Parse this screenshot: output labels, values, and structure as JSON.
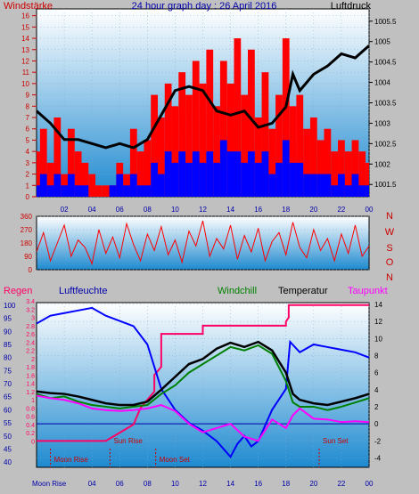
{
  "colors": {
    "frame": "#c0c0c0",
    "plot_top": "#ffffff",
    "plot_bottom": "#1e8ad0",
    "wind": "#ff0000",
    "gust": "#0000ff",
    "pressure": "#000000",
    "direction": "#ff0000",
    "humidity": "#0000ff",
    "temperature": "#000000",
    "windchill": "#008000",
    "dewpoint": "#ff00ff",
    "rain": "#ff0066",
    "title_blue": "#0000aa",
    "label_red": "#cc0000"
  },
  "chart_data": [
    {
      "type": "area",
      "id": "wind-pressure",
      "title": "24 hour graph day : 26 April 2016",
      "left_label": "Windstärke",
      "right_label": "Luftdruck",
      "x_ticks": [
        "02",
        "04",
        "06",
        "08",
        "10",
        "12",
        "14",
        "16",
        "18",
        "20",
        "22",
        "00"
      ],
      "x_range_hours": [
        0,
        24
      ],
      "left_axis": {
        "ticks": [
          "0",
          "1",
          "2",
          "3",
          "4",
          "5",
          "6",
          "7",
          "8",
          "9",
          "10",
          "11",
          "12",
          "13",
          "14",
          "15",
          "16"
        ],
        "ylim": [
          0,
          16.6
        ]
      },
      "right_axis": {
        "ticks": [
          "1001.5",
          "1002",
          "1002.5",
          "1003",
          "1003.5",
          "1004",
          "1004.5",
          "1005",
          "1005.5"
        ],
        "ylim": [
          1001.2,
          1005.8
        ]
      },
      "series": [
        {
          "key": "wind",
          "x": [
            0,
            0.5,
            1,
            1.5,
            2,
            2.5,
            3,
            3.5,
            4,
            4.5,
            5,
            5.5,
            6,
            6.5,
            7,
            7.5,
            8,
            8.5,
            9,
            9.5,
            10,
            10.5,
            11,
            11.5,
            12,
            12.5,
            13,
            13.5,
            14,
            14.5,
            15,
            15.5,
            16,
            16.5,
            17,
            17.5,
            18,
            18.5,
            19,
            19.5,
            20,
            20.5,
            21,
            21.5,
            22,
            22.5,
            23,
            23.5,
            24
          ],
          "values": [
            4,
            6,
            3,
            7,
            2,
            6,
            4,
            3,
            2,
            1,
            1,
            1,
            3,
            2,
            6,
            4,
            5,
            9,
            7,
            10,
            8,
            11,
            9,
            12,
            10,
            13,
            8,
            12,
            10,
            14,
            9,
            13,
            7,
            11,
            6,
            9,
            14,
            8,
            9,
            6,
            7,
            5,
            6,
            4,
            5,
            4,
            5,
            4,
            3
          ]
        },
        {
          "key": "gust",
          "x": [
            0,
            0.5,
            1,
            1.5,
            2,
            2.5,
            3,
            3.5,
            4,
            4.5,
            5,
            5.5,
            6,
            6.5,
            7,
            7.5,
            8,
            8.5,
            9,
            9.5,
            10,
            10.5,
            11,
            11.5,
            12,
            12.5,
            13,
            13.5,
            14,
            14.5,
            15,
            15.5,
            16,
            16.5,
            17,
            17.5,
            18,
            18.5,
            19,
            19.5,
            20,
            20.5,
            21,
            21.5,
            22,
            22.5,
            23,
            23.5,
            24
          ],
          "values": [
            1,
            2,
            1,
            2,
            1,
            2,
            1,
            1,
            0,
            0,
            0,
            1,
            2,
            1,
            2,
            1,
            1,
            3,
            2,
            4,
            3,
            4,
            3,
            4,
            3,
            4,
            3,
            5,
            4,
            4,
            3,
            4,
            3,
            4,
            2,
            3,
            5,
            3,
            3,
            2,
            2,
            2,
            2,
            1,
            2,
            1,
            2,
            1,
            1
          ]
        },
        {
          "key": "pressure",
          "x": [
            0,
            1,
            2,
            3,
            4,
            5,
            6,
            7,
            8,
            9,
            10,
            11,
            12,
            13,
            14,
            15,
            16,
            17,
            18,
            18.5,
            19,
            20,
            21,
            22,
            23,
            24
          ],
          "values": [
            1003.3,
            1003.0,
            1002.6,
            1002.6,
            1002.5,
            1002.4,
            1002.5,
            1002.4,
            1002.6,
            1003.2,
            1003.8,
            1003.9,
            1003.8,
            1003.3,
            1003.2,
            1003.3,
            1002.9,
            1003.0,
            1003.4,
            1004.2,
            1003.8,
            1004.2,
            1004.4,
            1004.7,
            1004.6,
            1004.9
          ]
        }
      ]
    },
    {
      "type": "scatter",
      "id": "wind-direction",
      "y_ticks": [
        "0",
        "90",
        "180",
        "270",
        "360"
      ],
      "ylim": [
        0,
        360
      ],
      "compass_labels": [
        "N",
        "W",
        "S",
        "O",
        "N"
      ],
      "x_range_hours": [
        0,
        24
      ],
      "series": [
        {
          "key": "direction",
          "x": [
            0,
            0.5,
            1,
            1.5,
            2,
            2.5,
            3,
            3.5,
            4,
            4.5,
            5,
            5.5,
            6,
            6.5,
            7,
            7.5,
            8,
            8.5,
            9,
            9.5,
            10,
            10.5,
            11,
            11.5,
            12,
            12.5,
            13,
            13.5,
            14,
            14.5,
            15,
            15.5,
            16,
            16.5,
            17,
            17.5,
            18,
            18.5,
            19,
            19.5,
            20,
            20.5,
            21,
            21.5,
            22,
            22.5,
            23,
            23.5,
            24
          ],
          "values": [
            120,
            250,
            60,
            180,
            300,
            90,
            200,
            150,
            40,
            270,
            110,
            220,
            80,
            310,
            170,
            60,
            240,
            130,
            290,
            100,
            200,
            50,
            260,
            160,
            330,
            90,
            210,
            140,
            300,
            70,
            230,
            120,
            280,
            60,
            190,
            250,
            100,
            320,
            150,
            80,
            270,
            130,
            210,
            60,
            240,
            110,
            300,
            90,
            160
          ]
        }
      ]
    },
    {
      "type": "line",
      "id": "climate",
      "labels": {
        "rain": "Regen",
        "humidity": "Luftfeuchte",
        "windchill": "Windchill",
        "temperature": "Temperatur",
        "dewpoint": "Taupunkt"
      },
      "rain_axis": {
        "ticks": [
          "0",
          "0.2",
          "0.4",
          "0.6",
          "0.8",
          "1",
          "1.2",
          "1.4",
          "1.6",
          "1.8",
          "2",
          "2.2",
          "2.4",
          "2.6",
          "2.8",
          "3",
          "3.2",
          "3.4"
        ],
        "ylim": [
          -0.64,
          3.36
        ]
      },
      "humidity_axis": {
        "ticks": [
          "40",
          "45",
          "50",
          "55",
          "60",
          "65",
          "70",
          "75",
          "80",
          "85",
          "90",
          "95",
          "100"
        ],
        "ylim": [
          38,
          101
        ]
      },
      "temp_axis": {
        "ticks": [
          "-4",
          "-2",
          "0",
          "2",
          "4",
          "6",
          "8",
          "10",
          "12",
          "14"
        ],
        "ylim": [
          -5.1,
          14.2
        ]
      },
      "x_range_hours": [
        0,
        24
      ],
      "annotations": [
        {
          "text": "Moon Rise",
          "hour": 1.0,
          "level": "low"
        },
        {
          "text": "Sun Rise",
          "hour": 5.3,
          "level": "high"
        },
        {
          "text": "Moon Set",
          "hour": 8.6,
          "level": "low"
        },
        {
          "text": "Sun Set",
          "hour": 20.4,
          "level": "high"
        },
        {
          "text": "Moon Rise",
          "hour": 0.4,
          "level": "axis"
        }
      ],
      "series": [
        {
          "key": "humidity",
          "x": [
            0,
            1,
            2,
            3,
            4,
            5,
            6,
            7,
            8,
            9,
            10,
            11,
            12,
            13,
            14,
            14.5,
            15,
            15.5,
            16,
            17,
            18,
            18.3,
            19,
            20,
            21,
            22,
            23,
            24
          ],
          "values": [
            93,
            96,
            97,
            98,
            99,
            96,
            94,
            92,
            85,
            68,
            60,
            55,
            52,
            48,
            42,
            47,
            50,
            46,
            48,
            60,
            68,
            86,
            82,
            85,
            84,
            83,
            82,
            80
          ]
        },
        {
          "key": "temperature",
          "x": [
            0,
            1,
            2,
            3,
            4,
            5,
            6,
            7,
            8,
            9,
            10,
            11,
            12,
            13,
            14,
            15,
            16,
            17,
            18,
            18.5,
            19,
            20,
            21,
            22,
            23,
            24
          ],
          "values": [
            3.8,
            3.6,
            3.5,
            3.2,
            2.8,
            2.4,
            2.2,
            2.2,
            2.6,
            4.0,
            5.5,
            7.0,
            7.6,
            8.8,
            9.5,
            9.0,
            9.6,
            8.6,
            6.0,
            3.5,
            2.8,
            2.4,
            2.2,
            2.6,
            3.0,
            3.5
          ]
        },
        {
          "key": "windchill",
          "x": [
            0,
            1,
            2,
            3,
            4,
            5,
            6,
            7,
            8,
            9,
            10,
            11,
            12,
            13,
            14,
            15,
            16,
            17,
            18,
            18.5,
            19,
            20,
            21,
            22,
            23,
            24
          ],
          "values": [
            3.5,
            3.0,
            3.2,
            2.6,
            2.2,
            2.0,
            1.8,
            2.0,
            2.2,
            3.5,
            4.5,
            6.0,
            7.0,
            8.0,
            9.0,
            8.6,
            9.2,
            8.2,
            5.0,
            2.5,
            2.0,
            2.0,
            1.6,
            2.0,
            2.5,
            3.0
          ]
        },
        {
          "key": "dewpoint",
          "x": [
            0,
            1,
            2,
            3,
            4,
            5,
            6,
            7,
            8,
            9,
            10,
            11,
            12,
            13,
            14,
            15,
            16,
            17,
            18,
            18.5,
            19,
            20,
            21,
            22,
            23,
            24
          ],
          "values": [
            3.3,
            3.0,
            2.8,
            2.4,
            1.8,
            1.6,
            1.5,
            1.6,
            1.8,
            2.2,
            1.5,
            0,
            -1.0,
            -0.5,
            0,
            -1.5,
            -2.0,
            0.5,
            -0.5,
            1.0,
            1.8,
            0.6,
            0.5,
            0.2,
            0.3,
            0.2
          ]
        },
        {
          "key": "rain",
          "x": [
            0,
            5,
            5.5,
            6,
            7,
            7.5,
            8,
            8.5,
            8.5,
            9,
            9,
            11,
            12,
            12,
            16,
            18,
            18,
            18.2,
            18.2,
            24
          ],
          "values": [
            0,
            0,
            0.1,
            0.2,
            0.4,
            0.8,
            1,
            1.2,
            1.6,
            1.8,
            2.6,
            2.6,
            2.6,
            2.8,
            2.8,
            2.8,
            2.9,
            3.0,
            3.3,
            3.3
          ]
        }
      ]
    }
  ]
}
